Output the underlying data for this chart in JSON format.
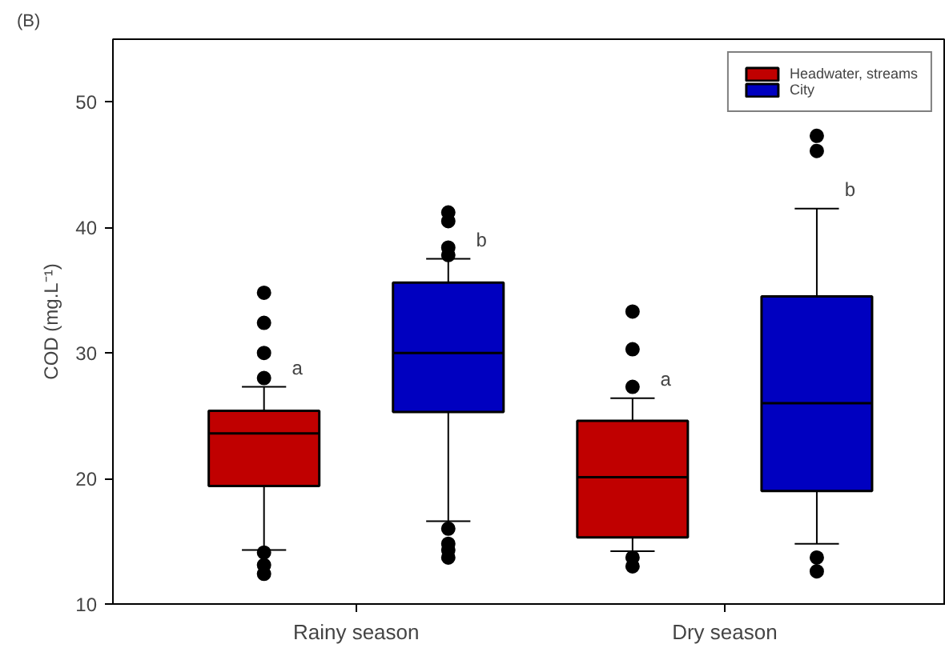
{
  "chart_data": {
    "type": "box",
    "title": "(B)",
    "ylabel": "COD (mg.L⁻¹)",
    "categories": [
      "Rainy season",
      "Dry season"
    ],
    "ylim": [
      10,
      55
    ],
    "yticks": [
      10,
      20,
      30,
      40,
      50
    ],
    "grid": false,
    "legend": "top right",
    "series": [
      {
        "name": "Headwater, streams",
        "color": "#c00000",
        "boxes": [
          {
            "low": 14.3,
            "q1": 19.4,
            "median": 23.6,
            "q3": 25.4,
            "high": 27.3,
            "outliers": [
              34.8,
              32.4,
              30.0,
              28.0,
              14.1,
              13.1,
              12.4
            ]
          },
          {
            "low": 14.2,
            "q1": 15.3,
            "median": 20.1,
            "q3": 24.6,
            "high": 26.4,
            "outliers": [
              33.3,
              30.3,
              27.3,
              13.7,
              13.0
            ]
          }
        ]
      },
      {
        "name": "City",
        "color": "#0000c0",
        "boxes": [
          {
            "low": 16.6,
            "q1": 25.3,
            "median": 30.0,
            "q3": 35.6,
            "high": 37.5,
            "outliers": [
              41.2,
              40.5,
              38.4,
              37.8,
              16.0,
              14.8,
              14.3,
              13.7
            ]
          },
          {
            "low": 14.8,
            "q1": 19.0,
            "median": 26.0,
            "q3": 34.5,
            "high": 41.5,
            "outliers": [
              47.3,
              46.1,
              13.7,
              12.6
            ]
          }
        ]
      }
    ],
    "annotations": [
      "a",
      "b",
      "a",
      "b"
    ]
  }
}
